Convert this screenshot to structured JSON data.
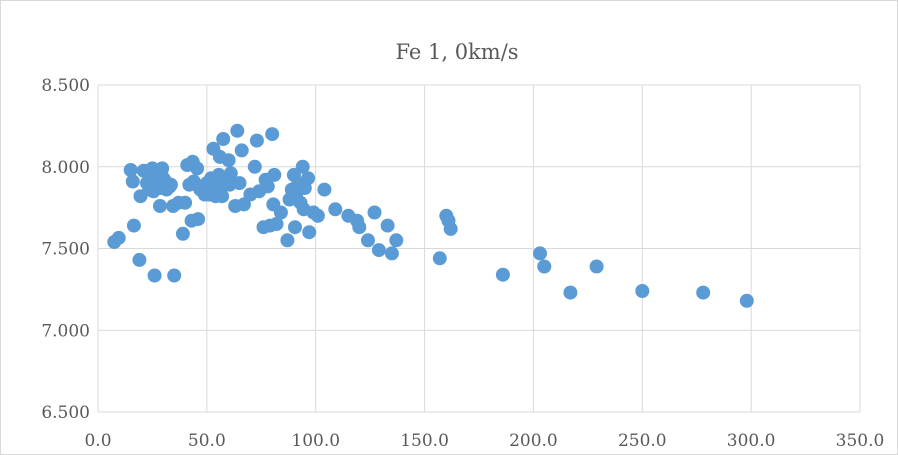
{
  "chart_data": {
    "type": "scatter",
    "title": "Fe 1, 0km/s",
    "xlabel": "",
    "ylabel": "",
    "xlim": [
      0,
      350
    ],
    "ylim": [
      6.5,
      8.5
    ],
    "x_ticks": [
      "0.0",
      "50.0",
      "100.0",
      "150.0",
      "200.0",
      "250.0",
      "300.0",
      "350.0"
    ],
    "y_ticks": [
      "6.500",
      "7.000",
      "7.500",
      "8.000",
      "8.500"
    ],
    "grid": true,
    "legend": "none",
    "marker_color": "#5b9bd5",
    "gridline_color": "#d9d9d9",
    "series": [
      {
        "points": [
          [
            7.5,
            7.54
          ],
          [
            9.5,
            7.565
          ],
          [
            15.0,
            7.98
          ],
          [
            16.0,
            7.91
          ],
          [
            16.5,
            7.64
          ],
          [
            19.0,
            7.43
          ],
          [
            19.5,
            7.82
          ],
          [
            21.0,
            7.975
          ],
          [
            22.5,
            7.9
          ],
          [
            23.5,
            7.86
          ],
          [
            24.0,
            7.98
          ],
          [
            25.0,
            7.99
          ],
          [
            25.5,
            7.85
          ],
          [
            26.0,
            7.335
          ],
          [
            27.0,
            7.95
          ],
          [
            28.0,
            7.88
          ],
          [
            28.5,
            7.76
          ],
          [
            29.0,
            7.87
          ],
          [
            29.5,
            7.99
          ],
          [
            30.0,
            7.93
          ],
          [
            31.0,
            7.91
          ],
          [
            31.5,
            7.86
          ],
          [
            33.0,
            7.88
          ],
          [
            33.5,
            7.89
          ],
          [
            34.5,
            7.76
          ],
          [
            35.0,
            7.335
          ],
          [
            37.0,
            7.78
          ],
          [
            39.0,
            7.59
          ],
          [
            40.0,
            7.78
          ],
          [
            41.0,
            8.01
          ],
          [
            42.0,
            7.89
          ],
          [
            43.0,
            7.67
          ],
          [
            43.5,
            8.03
          ],
          [
            44.0,
            7.91
          ],
          [
            45.5,
            7.99
          ],
          [
            46.0,
            7.68
          ],
          [
            47.0,
            7.86
          ],
          [
            48.0,
            7.88
          ],
          [
            49.0,
            7.83
          ],
          [
            50.0,
            7.9
          ],
          [
            51.0,
            7.83
          ],
          [
            52.0,
            7.93
          ],
          [
            52.5,
            7.87
          ],
          [
            53.0,
            8.11
          ],
          [
            54.0,
            7.82
          ],
          [
            55.0,
            7.88
          ],
          [
            55.5,
            7.95
          ],
          [
            56.0,
            8.06
          ],
          [
            56.5,
            7.87
          ],
          [
            57.0,
            7.82
          ],
          [
            57.5,
            8.17
          ],
          [
            58.0,
            7.91
          ],
          [
            59.0,
            7.93
          ],
          [
            60.0,
            8.04
          ],
          [
            60.5,
            7.89
          ],
          [
            61.0,
            7.96
          ],
          [
            63.0,
            7.76
          ],
          [
            64.0,
            8.22
          ],
          [
            65.0,
            7.9
          ],
          [
            66.0,
            8.1
          ],
          [
            67.0,
            7.77
          ],
          [
            70.0,
            7.83
          ],
          [
            72.0,
            8.0
          ],
          [
            73.0,
            8.16
          ],
          [
            74.0,
            7.85
          ],
          [
            76.0,
            7.63
          ],
          [
            77.0,
            7.92
          ],
          [
            78.0,
            7.88
          ],
          [
            79.0,
            7.64
          ],
          [
            80.0,
            8.2
          ],
          [
            80.5,
            7.77
          ],
          [
            81.0,
            7.95
          ],
          [
            82.0,
            7.65
          ],
          [
            84.0,
            7.72
          ],
          [
            87.0,
            7.55
          ],
          [
            88.0,
            7.8
          ],
          [
            89.0,
            7.86
          ],
          [
            90.0,
            7.95
          ],
          [
            90.5,
            7.63
          ],
          [
            91.0,
            7.83
          ],
          [
            92.0,
            7.9
          ],
          [
            93.0,
            7.78
          ],
          [
            94.0,
            8.0
          ],
          [
            94.5,
            7.74
          ],
          [
            95.0,
            7.87
          ],
          [
            96.5,
            7.93
          ],
          [
            97.0,
            7.6
          ],
          [
            99.0,
            7.72
          ],
          [
            101.0,
            7.7
          ],
          [
            104.0,
            7.86
          ],
          [
            109.0,
            7.74
          ],
          [
            115.0,
            7.7
          ],
          [
            119.0,
            7.67
          ],
          [
            120.0,
            7.63
          ],
          [
            124.0,
            7.55
          ],
          [
            127.0,
            7.72
          ],
          [
            129.0,
            7.49
          ],
          [
            133.0,
            7.64
          ],
          [
            135.0,
            7.47
          ],
          [
            137.0,
            7.55
          ],
          [
            157.0,
            7.44
          ],
          [
            160.0,
            7.7
          ],
          [
            161.0,
            7.67
          ],
          [
            162.0,
            7.62
          ],
          [
            186.0,
            7.34
          ],
          [
            203.0,
            7.47
          ],
          [
            205.0,
            7.39
          ],
          [
            217.0,
            7.23
          ],
          [
            229.0,
            7.39
          ],
          [
            250.0,
            7.24
          ],
          [
            278.0,
            7.23
          ],
          [
            298.0,
            7.18
          ]
        ]
      }
    ]
  }
}
